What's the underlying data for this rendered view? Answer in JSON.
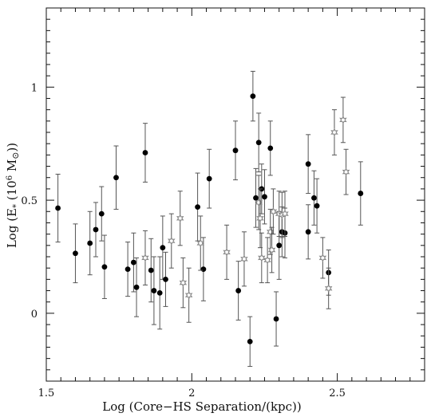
{
  "chart_data": {
    "type": "scatter",
    "title": "",
    "xlabel": "Log (Core−HS Separation/(kpc))",
    "ylabel": "Log (E* (10⁶ M⊙))",
    "ylabel_parts": {
      "prefix": "Log (E",
      "sub": "*",
      "mid": " (10",
      "sup": "6",
      "unit": " M",
      "sym": "⊙",
      "suffix": "))"
    },
    "xlim": [
      1.5,
      2.8
    ],
    "ylim": [
      -0.3,
      1.35
    ],
    "x_ticks": [
      "1.5",
      "2",
      "2.5"
    ],
    "y_ticks": [
      "0",
      "0.5",
      "1"
    ],
    "grid": false,
    "colors": {
      "series_dot": "#000000",
      "series_star": "#888888",
      "errorbar": "#555555"
    },
    "series": [
      {
        "marker": "filled-circle",
        "points": [
          {
            "x": 1.54,
            "y": 0.465,
            "err": 0.15
          },
          {
            "x": 1.6,
            "y": 0.265,
            "err": 0.13
          },
          {
            "x": 1.65,
            "y": 0.31,
            "err": 0.14
          },
          {
            "x": 1.67,
            "y": 0.37,
            "err": 0.12
          },
          {
            "x": 1.69,
            "y": 0.44,
            "err": 0.12
          },
          {
            "x": 1.7,
            "y": 0.205,
            "err": 0.14
          },
          {
            "x": 1.74,
            "y": 0.6,
            "err": 0.14
          },
          {
            "x": 1.78,
            "y": 0.195,
            "err": 0.12
          },
          {
            "x": 1.8,
            "y": 0.225,
            "err": 0.13
          },
          {
            "x": 1.81,
            "y": 0.115,
            "err": 0.13
          },
          {
            "x": 1.84,
            "y": 0.71,
            "err": 0.13
          },
          {
            "x": 1.86,
            "y": 0.19,
            "err": 0.14
          },
          {
            "x": 1.87,
            "y": 0.1,
            "err": 0.15
          },
          {
            "x": 1.89,
            "y": 0.09,
            "err": 0.16
          },
          {
            "x": 1.9,
            "y": 0.29,
            "err": 0.14
          },
          {
            "x": 1.91,
            "y": 0.15,
            "err": 0.12
          },
          {
            "x": 2.02,
            "y": 0.47,
            "err": 0.15
          },
          {
            "x": 2.04,
            "y": 0.195,
            "err": 0.14
          },
          {
            "x": 2.06,
            "y": 0.595,
            "err": 0.13
          },
          {
            "x": 2.15,
            "y": 0.72,
            "err": 0.13
          },
          {
            "x": 2.16,
            "y": 0.1,
            "err": 0.13
          },
          {
            "x": 2.2,
            "y": -0.125,
            "err": 0.11
          },
          {
            "x": 2.21,
            "y": 0.96,
            "err": 0.11
          },
          {
            "x": 2.22,
            "y": 0.51,
            "err": 0.13
          },
          {
            "x": 2.23,
            "y": 0.755,
            "err": 0.13
          },
          {
            "x": 2.24,
            "y": 0.55,
            "err": 0.11
          },
          {
            "x": 2.25,
            "y": 0.515,
            "err": 0.12
          },
          {
            "x": 2.27,
            "y": 0.73,
            "err": 0.12
          },
          {
            "x": 2.29,
            "y": -0.025,
            "err": 0.12
          },
          {
            "x": 2.3,
            "y": 0.3,
            "err": 0.15
          },
          {
            "x": 2.31,
            "y": 0.36,
            "err": 0.11
          },
          {
            "x": 2.32,
            "y": 0.355,
            "err": 0.11
          },
          {
            "x": 2.4,
            "y": 0.66,
            "err": 0.13
          },
          {
            "x": 2.4,
            "y": 0.36,
            "err": 0.12
          },
          {
            "x": 2.42,
            "y": 0.51,
            "err": 0.12
          },
          {
            "x": 2.43,
            "y": 0.475,
            "err": 0.12
          },
          {
            "x": 2.47,
            "y": 0.18,
            "err": 0.1
          },
          {
            "x": 2.58,
            "y": 0.53,
            "err": 0.14
          }
        ]
      },
      {
        "marker": "open-star",
        "points": [
          {
            "x": 1.84,
            "y": 0.245,
            "err": 0.12
          },
          {
            "x": 1.93,
            "y": 0.32,
            "err": 0.12
          },
          {
            "x": 1.96,
            "y": 0.42,
            "err": 0.12
          },
          {
            "x": 1.97,
            "y": 0.135,
            "err": 0.11
          },
          {
            "x": 1.99,
            "y": 0.08,
            "err": 0.12
          },
          {
            "x": 2.03,
            "y": 0.31,
            "err": 0.12
          },
          {
            "x": 2.12,
            "y": 0.27,
            "err": 0.12
          },
          {
            "x": 2.18,
            "y": 0.24,
            "err": 0.12
          },
          {
            "x": 2.23,
            "y": 0.49,
            "err": 0.12
          },
          {
            "x": 2.235,
            "y": 0.42,
            "err": 0.13
          },
          {
            "x": 2.24,
            "y": 0.245,
            "err": 0.11
          },
          {
            "x": 2.26,
            "y": 0.235,
            "err": 0.1
          },
          {
            "x": 2.27,
            "y": 0.36,
            "err": 0.1
          },
          {
            "x": 2.275,
            "y": 0.28,
            "err": 0.1
          },
          {
            "x": 2.28,
            "y": 0.45,
            "err": 0.1
          },
          {
            "x": 2.3,
            "y": 0.44,
            "err": 0.1
          },
          {
            "x": 2.31,
            "y": 0.435,
            "err": 0.1
          },
          {
            "x": 2.32,
            "y": 0.44,
            "err": 0.1
          },
          {
            "x": 2.45,
            "y": 0.245,
            "err": 0.09
          },
          {
            "x": 2.47,
            "y": 0.11,
            "err": 0.09
          },
          {
            "x": 2.49,
            "y": 0.8,
            "err": 0.1
          },
          {
            "x": 2.52,
            "y": 0.855,
            "err": 0.1
          },
          {
            "x": 2.53,
            "y": 0.625,
            "err": 0.1
          }
        ]
      }
    ]
  }
}
